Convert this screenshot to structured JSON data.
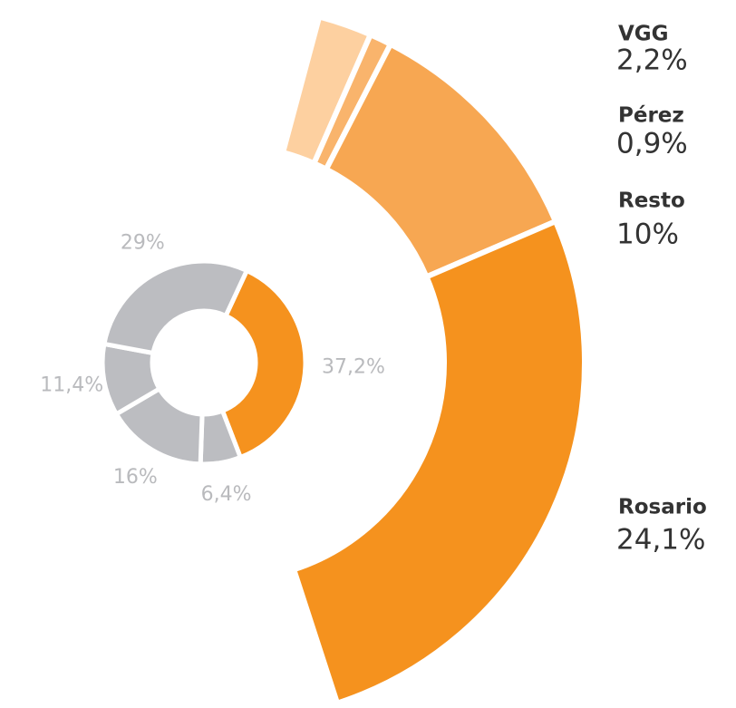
{
  "chart_data": {
    "type": "donut",
    "series": [
      {
        "values": [
          37.2,
          6.4,
          16,
          11.4,
          29
        ],
        "value_labels": [
          "37,2%",
          "6,4%",
          "16%",
          "11,4%",
          "29%"
        ],
        "colors": [
          "#f5921e",
          "#bcbdc1",
          "#bcbdc1",
          "#bcbdc1",
          "#bcbdc1"
        ]
      }
    ],
    "breakdown": {
      "categories": [
        "VGG",
        "Pérez",
        "Resto",
        "Rosario"
      ],
      "values": [
        2.2,
        0.9,
        10,
        24.1
      ],
      "value_labels": [
        "2,2%",
        "0,9%",
        "10%",
        "24,1%"
      ],
      "colors": [
        "#fdd0a0",
        "#f9b46c",
        "#f7a752",
        "#f5921e"
      ]
    }
  }
}
